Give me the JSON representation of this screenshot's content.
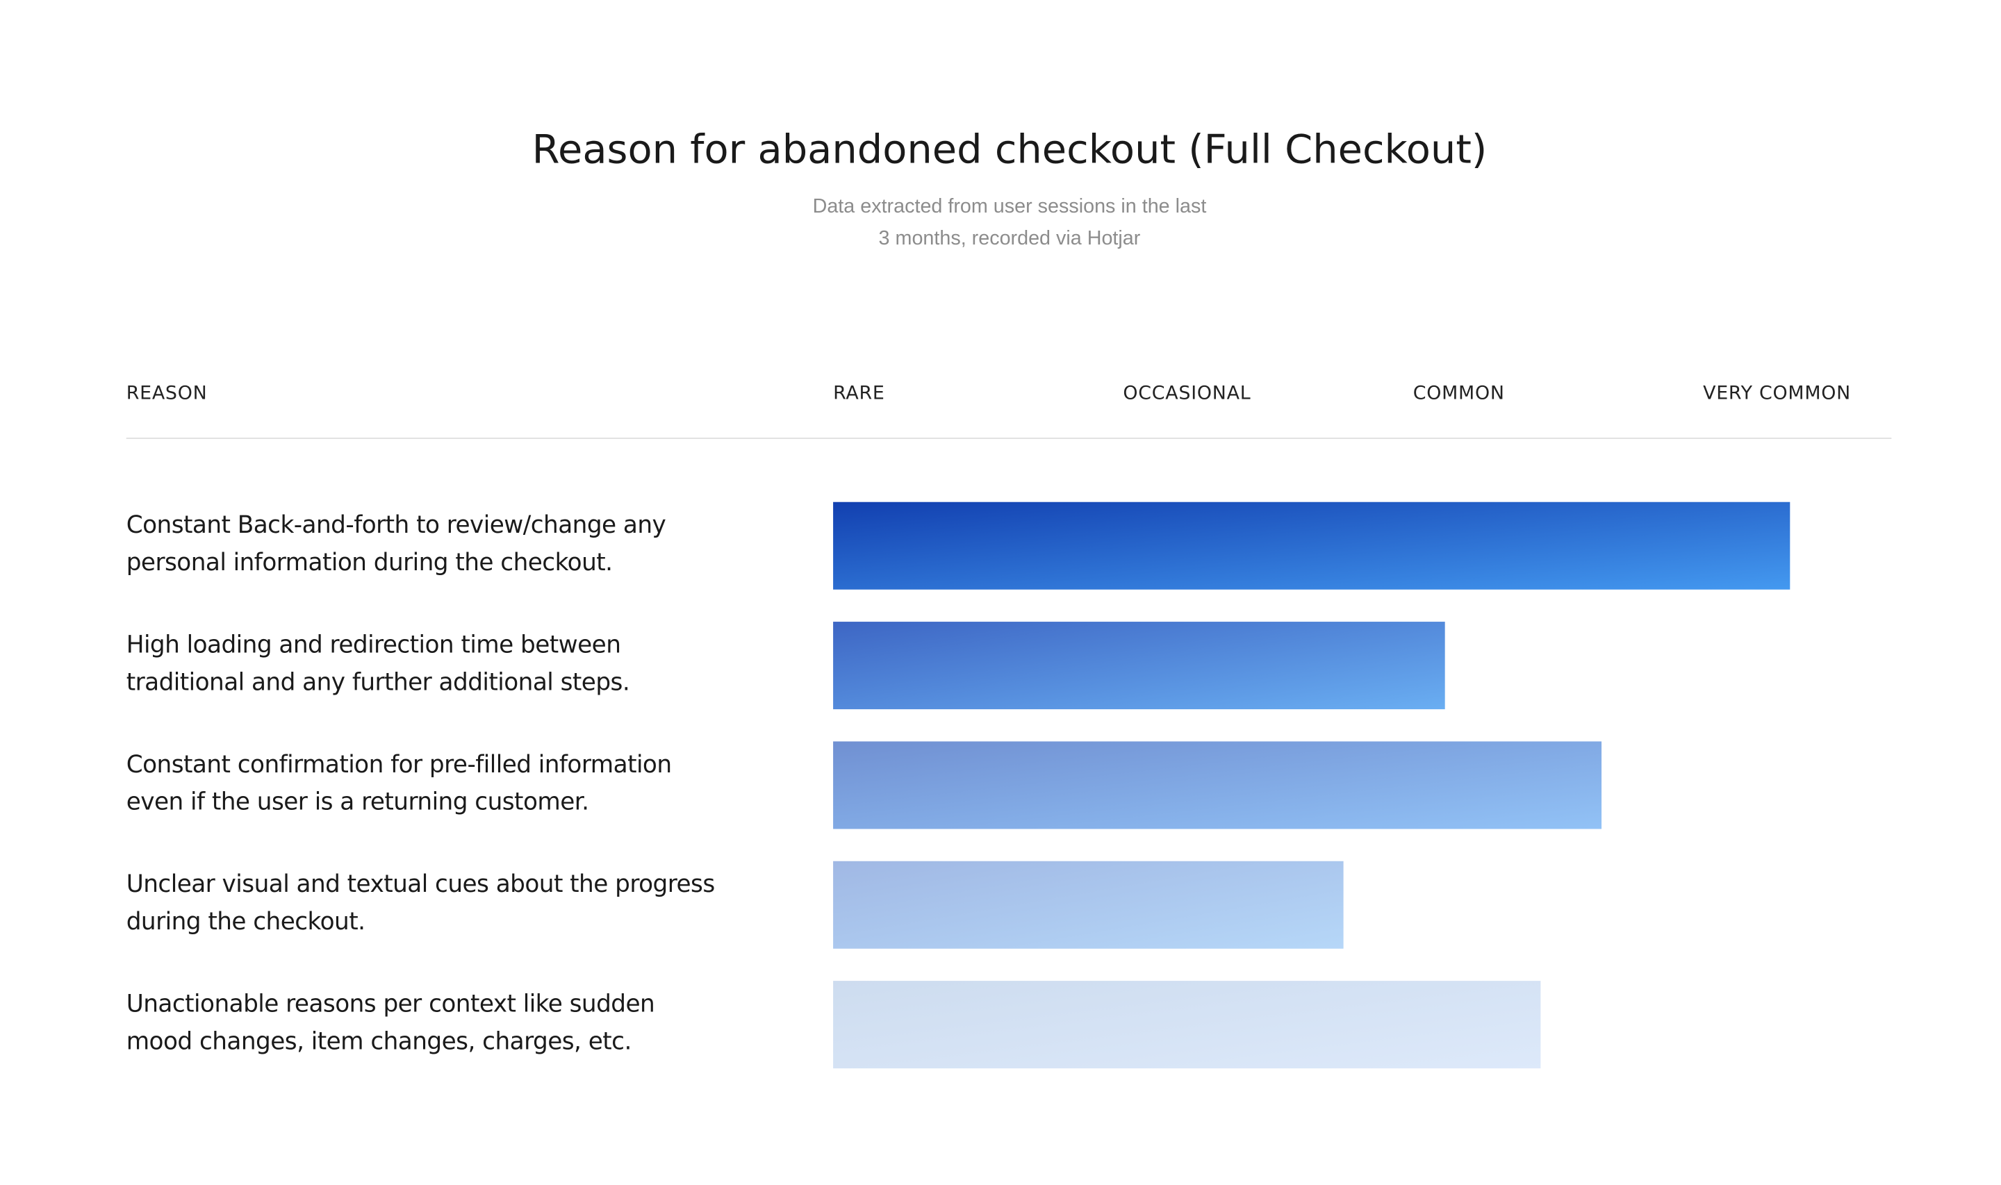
{
  "chart_data": {
    "type": "bar",
    "orientation": "horizontal",
    "title": "Reason for abandoned checkout (Full Checkout)",
    "subtitle": "Data extracted from user sessions in the last\n3 months, recorded via Hotjar",
    "ylabel": "REASON",
    "categories": [
      "Constant Back-and-forth to review/change any\npersonal information during the checkout.",
      "High loading and redirection time between\ntraditional and any further additional steps.",
      "Constant confirmation for pre-filled information\neven if the user is a returning customer.",
      "Unclear visual and textual cues about the progress\nduring the checkout.",
      "Unactionable reasons per context like sudden\nmood changes, item changes, charges, etc."
    ],
    "values": [
      3.3,
      2.11,
      2.65,
      1.76,
      2.44
    ],
    "colors": [
      [
        "#1240b0",
        "#4499f0"
      ],
      [
        "#3d66c4",
        "#6aaef2"
      ],
      [
        "#7090d2",
        "#92c2f6"
      ],
      [
        "#a0b8e4",
        "#b6d7f8"
      ],
      [
        "#cddcef",
        "#dde9fa"
      ]
    ],
    "xlim": [
      0,
      3.65
    ],
    "xticks": [
      {
        "value": 0,
        "label": "RARE"
      },
      {
        "value": 1,
        "label": "OCCASIONAL"
      },
      {
        "value": 2,
        "label": "COMMON"
      },
      {
        "value": 3,
        "label": "VERY COMMON"
      }
    ]
  }
}
